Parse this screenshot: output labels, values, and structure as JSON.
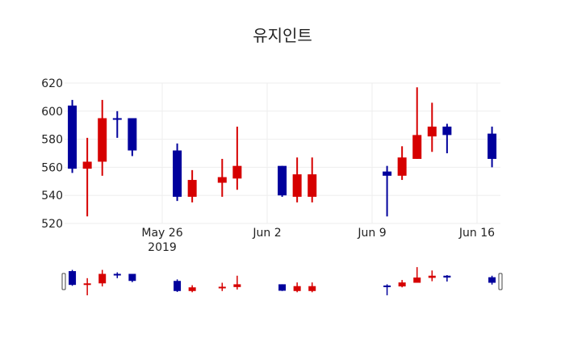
{
  "title": "유지인트",
  "colors": {
    "increasing": "#d60000",
    "decreasing": "#00009c",
    "grid": "#eeeeee",
    "text": "#222222",
    "slider_border": "#444444"
  },
  "chart_data": {
    "type": "candlestick",
    "title": "유지인트",
    "xlabel": "",
    "ylabel": "",
    "ylim": [
      520,
      620
    ],
    "yticks": [
      520,
      540,
      560,
      580,
      600,
      620
    ],
    "xticks": [
      {
        "date": "2019-05-26",
        "label": "May 26",
        "sublabel": "2019"
      },
      {
        "date": "2019-06-02",
        "label": "Jun 2",
        "sublabel": ""
      },
      {
        "date": "2019-06-09",
        "label": "Jun 9",
        "sublabel": ""
      },
      {
        "date": "2019-06-16",
        "label": "Jun 16",
        "sublabel": ""
      }
    ],
    "grid": true,
    "range_slider": true,
    "series": [
      {
        "date": "2019-05-20",
        "open": 604,
        "high": 608,
        "low": 556,
        "close": 559
      },
      {
        "date": "2019-05-21",
        "open": 559,
        "high": 581,
        "low": 525,
        "close": 564
      },
      {
        "date": "2019-05-22",
        "open": 564,
        "high": 608,
        "low": 554,
        "close": 595
      },
      {
        "date": "2019-05-23",
        "open": 595,
        "high": 600,
        "low": 581,
        "close": 594
      },
      {
        "date": "2019-05-24",
        "open": 595,
        "high": 595,
        "low": 568,
        "close": 572
      },
      {
        "date": "2019-05-27",
        "open": 572,
        "high": 577,
        "low": 536,
        "close": 539
      },
      {
        "date": "2019-05-28",
        "open": 539,
        "high": 558,
        "low": 535,
        "close": 551
      },
      {
        "date": "2019-05-30",
        "open": 549,
        "high": 566,
        "low": 539,
        "close": 553
      },
      {
        "date": "2019-05-31",
        "open": 552,
        "high": 589,
        "low": 544,
        "close": 561
      },
      {
        "date": "2019-06-03",
        "open": 561,
        "high": 561,
        "low": 539,
        "close": 540
      },
      {
        "date": "2019-06-04",
        "open": 539,
        "high": 567,
        "low": 535,
        "close": 555
      },
      {
        "date": "2019-06-05",
        "open": 539,
        "high": 567,
        "low": 535,
        "close": 555
      },
      {
        "date": "2019-06-10",
        "open": 557,
        "high": 561,
        "low": 525,
        "close": 554
      },
      {
        "date": "2019-06-11",
        "open": 554,
        "high": 575,
        "low": 551,
        "close": 567
      },
      {
        "date": "2019-06-12",
        "open": 566,
        "high": 617,
        "low": 566,
        "close": 583
      },
      {
        "date": "2019-06-13",
        "open": 582,
        "high": 606,
        "low": 571,
        "close": 589
      },
      {
        "date": "2019-06-14",
        "open": 589,
        "high": 591,
        "low": 570,
        "close": 583
      },
      {
        "date": "2019-06-17",
        "open": 584,
        "high": 589,
        "low": 560,
        "close": 566
      }
    ]
  }
}
